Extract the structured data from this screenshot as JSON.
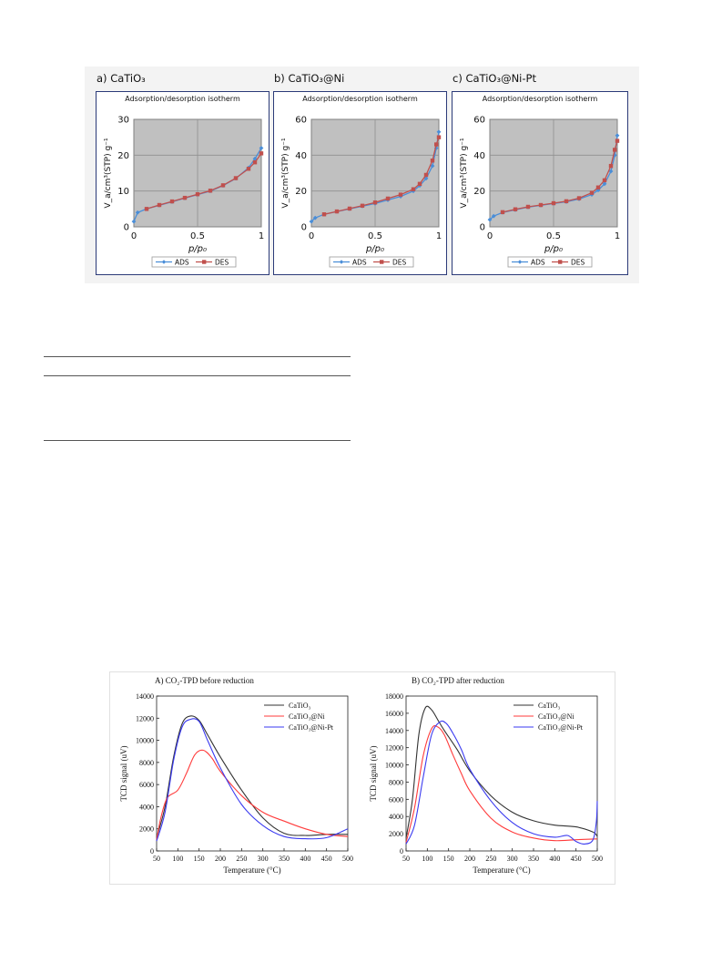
{
  "isotherm_figure": {
    "legend": {
      "ads": "ADS",
      "des": "DES"
    },
    "y_axis_label": "V_a/cm³(STP) g⁻¹",
    "x_axis_label": "p/p₀",
    "panels": [
      {
        "label": "a) CaTiO₃",
        "subtitle": "Adsorption/desorption isotherm"
      },
      {
        "label": "b) CaTiO₃@Ni",
        "subtitle": "Adsorption/desorption isotherm"
      },
      {
        "label": "c) CaTiO₃@Ni-Pt",
        "subtitle": "Adsorption/desorption isotherm"
      }
    ]
  },
  "tpd_figure": {
    "panels": [
      {
        "title": "A) CO₂-TPD before reduction"
      },
      {
        "title": "B) CO₂-TPD after reduction"
      }
    ],
    "colors": {
      "CaTiO3": "#333333",
      "CaTiO3@Ni": "#ff3b3b",
      "CaTiO3@Ni-Pt": "#3a3af0"
    }
  },
  "chart_data": [
    {
      "type": "line",
      "xlabel": "p/p₀",
      "ylabel": "V_a/cm³(STP) g⁻¹",
      "xlim": [
        0,
        1
      ],
      "ylim": [
        0,
        30
      ],
      "yticks": [
        "0",
        "10",
        "20",
        "30"
      ],
      "xticks": [
        "0",
        "0.5",
        "1"
      ],
      "grid": true,
      "legend": "bottom",
      "series": [
        {
          "name": "ADS",
          "x": [
            0,
            0.03,
            0.1,
            0.2,
            0.3,
            0.4,
            0.5,
            0.6,
            0.7,
            0.8,
            0.9,
            0.95,
            1.0
          ],
          "y": [
            1.5,
            4,
            5,
            6,
            7,
            8,
            9,
            10,
            11.5,
            13.5,
            16.5,
            19,
            22
          ]
        },
        {
          "name": "DES",
          "x": [
            0.1,
            0.2,
            0.3,
            0.4,
            0.5,
            0.6,
            0.7,
            0.8,
            0.9,
            0.95,
            1.0
          ],
          "y": [
            5,
            6.1,
            7.1,
            8.1,
            9.1,
            10.1,
            11.6,
            13.6,
            16.2,
            18,
            20.5
          ]
        }
      ]
    },
    {
      "type": "line",
      "xlabel": "p/p₀",
      "ylabel": "V_a/cm³(STP) g⁻¹",
      "xlim": [
        0,
        1
      ],
      "ylim": [
        0,
        60
      ],
      "yticks": [
        "0",
        "20",
        "40",
        "60"
      ],
      "xticks": [
        "0",
        "0.5",
        "1"
      ],
      "grid": true,
      "legend": "bottom",
      "series": [
        {
          "name": "ADS",
          "x": [
            0,
            0.03,
            0.1,
            0.2,
            0.3,
            0.4,
            0.5,
            0.6,
            0.7,
            0.8,
            0.85,
            0.9,
            0.95,
            0.98,
            1.0
          ],
          "y": [
            3,
            5,
            7,
            8.5,
            10,
            11.5,
            13,
            15,
            17,
            20,
            23,
            27,
            34,
            44,
            53
          ]
        },
        {
          "name": "DES",
          "x": [
            0.1,
            0.2,
            0.3,
            0.4,
            0.5,
            0.6,
            0.7,
            0.8,
            0.85,
            0.9,
            0.95,
            0.98,
            1.0
          ],
          "y": [
            7,
            8.6,
            10.2,
            11.8,
            13.6,
            15.8,
            18,
            21,
            24,
            29,
            37,
            46,
            50
          ]
        }
      ]
    },
    {
      "type": "line",
      "xlabel": "p/p₀",
      "ylabel": "V_a/cm³(STP) g⁻¹",
      "xlim": [
        0,
        1
      ],
      "ylim": [
        0,
        60
      ],
      "yticks": [
        "0",
        "20",
        "40",
        "60"
      ],
      "xticks": [
        "0",
        "0.5",
        "1"
      ],
      "grid": true,
      "legend": "bottom",
      "series": [
        {
          "name": "ADS",
          "x": [
            0,
            0.03,
            0.1,
            0.2,
            0.3,
            0.4,
            0.5,
            0.6,
            0.7,
            0.8,
            0.85,
            0.9,
            0.95,
            0.98,
            1.0
          ],
          "y": [
            4,
            6,
            8,
            9.5,
            11,
            12,
            13,
            14,
            15.5,
            18,
            20.5,
            24,
            31,
            40,
            51
          ]
        },
        {
          "name": "DES",
          "x": [
            0.1,
            0.2,
            0.3,
            0.4,
            0.5,
            0.6,
            0.7,
            0.8,
            0.85,
            0.9,
            0.95,
            0.98,
            1.0
          ],
          "y": [
            8.2,
            9.8,
            11.2,
            12.2,
            13.2,
            14.3,
            16,
            19,
            22,
            26,
            34,
            43,
            48
          ]
        }
      ]
    },
    {
      "type": "line",
      "title": "A) CO₂-TPD before reduction",
      "xlabel": "Temperature (°C)",
      "ylabel": "TCD signal (uV)",
      "xlim": [
        50,
        500
      ],
      "ylim": [
        0,
        14000
      ],
      "xticks": [
        "50",
        "100",
        "150",
        "200",
        "250",
        "300",
        "350",
        "400",
        "450",
        "500"
      ],
      "yticks": [
        "0",
        "2000",
        "4000",
        "6000",
        "8000",
        "10000",
        "12000",
        "14000"
      ],
      "legend": "top-right",
      "series": [
        {
          "name": "CaTiO₃",
          "x": [
            50,
            70,
            90,
            110,
            130,
            150,
            170,
            200,
            250,
            300,
            350,
            400,
            450,
            500
          ],
          "y": [
            1200,
            4000,
            8500,
            11500,
            12200,
            11800,
            10500,
            8500,
            5500,
            3000,
            1600,
            1400,
            1500,
            1500
          ]
        },
        {
          "name": "CaTiO₃@Ni",
          "x": [
            50,
            60,
            75,
            100,
            120,
            140,
            160,
            180,
            200,
            250,
            300,
            350,
            400,
            450,
            500
          ],
          "y": [
            1000,
            3000,
            4800,
            5500,
            7000,
            8700,
            9100,
            8400,
            7200,
            5000,
            3500,
            2700,
            2000,
            1500,
            1300
          ]
        },
        {
          "name": "CaTiO₃@Ni-Pt",
          "x": [
            50,
            70,
            90,
            110,
            130,
            150,
            170,
            200,
            250,
            300,
            350,
            400,
            450,
            500
          ],
          "y": [
            900,
            3500,
            8200,
            11200,
            11900,
            11700,
            10000,
            7500,
            4200,
            2300,
            1300,
            1100,
            1200,
            2000
          ]
        }
      ]
    },
    {
      "type": "line",
      "title": "B) CO₂-TPD after reduction",
      "xlabel": "Temperature (°C)",
      "ylabel": "TCD signal (uV)",
      "xlim": [
        50,
        500
      ],
      "ylim": [
        0,
        18000
      ],
      "xticks": [
        "50",
        "100",
        "150",
        "200",
        "250",
        "300",
        "350",
        "400",
        "450",
        "500"
      ],
      "yticks": [
        "0",
        "2000",
        "4000",
        "6000",
        "8000",
        "10000",
        "12000",
        "14000",
        "16000",
        "18000"
      ],
      "legend": "top-right",
      "series": [
        {
          "name": "CaTiO₃",
          "x": [
            50,
            65,
            80,
            95,
            110,
            125,
            140,
            170,
            200,
            250,
            300,
            350,
            400,
            450,
            490,
            500
          ],
          "y": [
            1500,
            6000,
            13500,
            16600,
            16400,
            15200,
            14000,
            11800,
            9300,
            6400,
            4500,
            3500,
            3000,
            2800,
            2200,
            1700
          ]
        },
        {
          "name": "CaTiO₃@Ni",
          "x": [
            50,
            70,
            90,
            110,
            125,
            140,
            160,
            180,
            200,
            250,
            300,
            350,
            400,
            450,
            500
          ],
          "y": [
            1000,
            5000,
            11000,
            14200,
            14400,
            13500,
            11200,
            9000,
            7000,
            3800,
            2200,
            1500,
            1200,
            1300,
            1400
          ]
        },
        {
          "name": "CaTiO₃@Ni-Pt",
          "x": [
            50,
            70,
            90,
            110,
            130,
            145,
            160,
            180,
            200,
            250,
            300,
            350,
            400,
            430,
            450,
            470,
            490,
            498,
            500
          ],
          "y": [
            800,
            3000,
            8500,
            13500,
            15000,
            14800,
            13700,
            11800,
            9500,
            5800,
            3300,
            2000,
            1600,
            1800,
            1100,
            800,
            1300,
            3500,
            5800
          ]
        }
      ]
    }
  ]
}
